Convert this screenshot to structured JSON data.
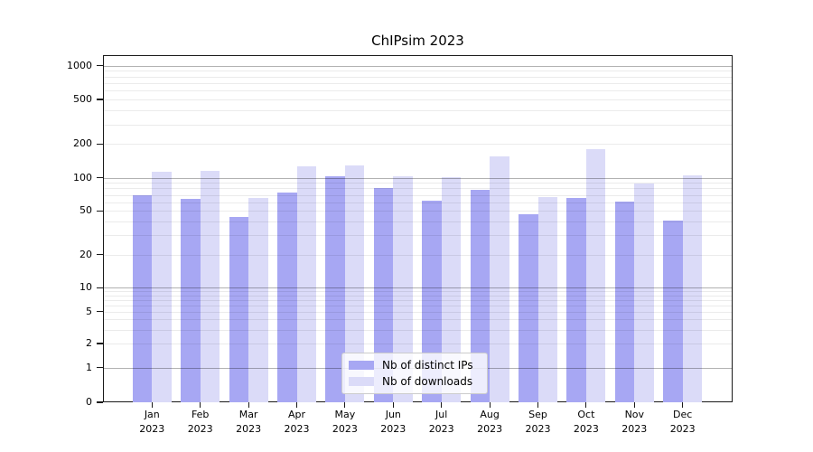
{
  "figure": {
    "title": "ChIPsim 2023"
  },
  "chart_data": {
    "type": "bar",
    "title": "ChIPsim 2023",
    "x_tick_months": [
      "Jan",
      "Feb",
      "Mar",
      "Apr",
      "May",
      "Jun",
      "Jul",
      "Aug",
      "Sep",
      "Oct",
      "Nov",
      "Dec"
    ],
    "x_tick_year": "2023",
    "categories": [
      "Jan 2023",
      "Feb 2023",
      "Mar 2023",
      "Apr 2023",
      "May 2023",
      "Jun 2023",
      "Jul 2023",
      "Aug 2023",
      "Sep 2023",
      "Oct 2023",
      "Nov 2023",
      "Dec 2023"
    ],
    "series": [
      {
        "name": "Nb of distinct IPs",
        "color": "#a7a7f3",
        "values": [
          70,
          64,
          44,
          73,
          104,
          80,
          62,
          78,
          47,
          66,
          61,
          41
        ]
      },
      {
        "name": "Nb of downloads",
        "color": "#dbdbf8",
        "values": [
          113,
          115,
          66,
          127,
          128,
          104,
          101,
          154,
          67,
          180,
          88,
          106
        ]
      }
    ],
    "yscale": "symlog",
    "ylim": [
      0,
      1250
    ],
    "yticks": [
      0,
      1,
      2,
      5,
      10,
      20,
      50,
      100,
      200,
      500,
      1000
    ],
    "ytick_labels": [
      "0",
      "1",
      "2",
      "5",
      "10",
      "20",
      "50",
      "100",
      "200",
      "500",
      "1000"
    ],
    "grid": {
      "major_at": [
        1,
        10,
        100,
        1000
      ],
      "minor_factors": [
        2,
        3,
        4,
        5,
        6,
        7,
        8,
        9
      ],
      "enabled": true
    },
    "legend": {
      "position": "lower center"
    }
  },
  "colors": {
    "bar_ips": "#a7a7f3",
    "bar_downloads": "#dbdbf8",
    "major_grid": "#b3b3b3",
    "minor_grid": "#ebebeb",
    "spine": "#1a1a1a",
    "text": "#000000"
  }
}
